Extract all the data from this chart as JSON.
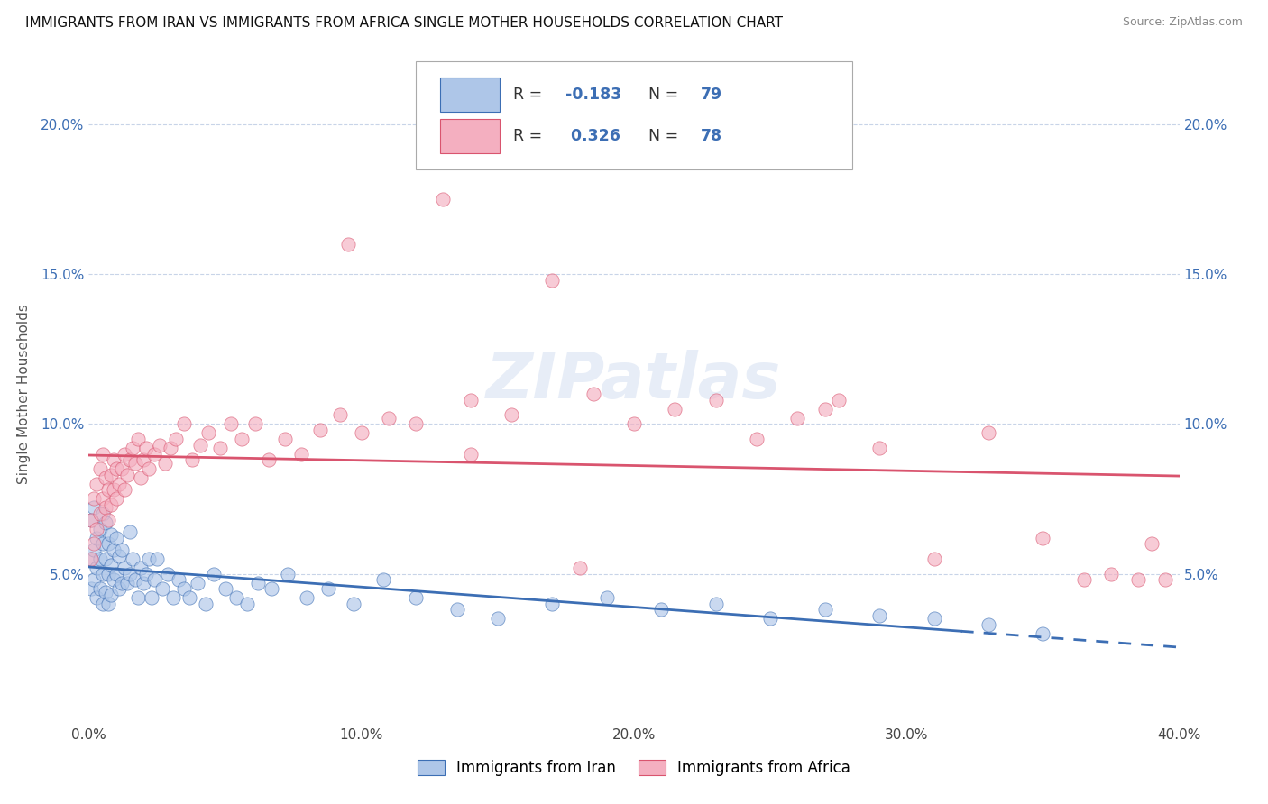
{
  "title": "IMMIGRANTS FROM IRAN VS IMMIGRANTS FROM AFRICA SINGLE MOTHER HOUSEHOLDS CORRELATION CHART",
  "source": "Source: ZipAtlas.com",
  "xlim": [
    0.0,
    0.4
  ],
  "ylim": [
    0.0,
    0.22
  ],
  "ylabel": "Single Mother Households",
  "legend_label_iran": "Immigrants from Iran",
  "legend_label_africa": "Immigrants from Africa",
  "legend_R_iran": "-0.183",
  "legend_N_iran": "79",
  "legend_R_africa": "0.326",
  "legend_N_africa": "78",
  "color_iran": "#aec6e8",
  "color_africa": "#f4afc0",
  "line_color_iran": "#3c6eb4",
  "line_color_africa": "#d9546e",
  "watermark": "ZIPatlas",
  "background_color": "#ffffff",
  "grid_color": "#c8d4e8",
  "iran_x": [
    0.001,
    0.001,
    0.001,
    0.002,
    0.002,
    0.002,
    0.003,
    0.003,
    0.003,
    0.004,
    0.004,
    0.004,
    0.005,
    0.005,
    0.005,
    0.005,
    0.006,
    0.006,
    0.006,
    0.007,
    0.007,
    0.007,
    0.008,
    0.008,
    0.008,
    0.009,
    0.009,
    0.01,
    0.01,
    0.011,
    0.011,
    0.012,
    0.012,
    0.013,
    0.014,
    0.015,
    0.015,
    0.016,
    0.017,
    0.018,
    0.019,
    0.02,
    0.021,
    0.022,
    0.023,
    0.024,
    0.025,
    0.027,
    0.029,
    0.031,
    0.033,
    0.035,
    0.037,
    0.04,
    0.043,
    0.046,
    0.05,
    0.054,
    0.058,
    0.062,
    0.067,
    0.073,
    0.08,
    0.088,
    0.097,
    0.108,
    0.12,
    0.135,
    0.15,
    0.17,
    0.19,
    0.21,
    0.23,
    0.25,
    0.27,
    0.29,
    0.31,
    0.33,
    0.35
  ],
  "iran_y": [
    0.068,
    0.055,
    0.045,
    0.072,
    0.058,
    0.048,
    0.062,
    0.052,
    0.042,
    0.065,
    0.055,
    0.045,
    0.07,
    0.06,
    0.05,
    0.04,
    0.067,
    0.055,
    0.044,
    0.06,
    0.05,
    0.04,
    0.063,
    0.053,
    0.043,
    0.058,
    0.048,
    0.062,
    0.05,
    0.056,
    0.045,
    0.058,
    0.047,
    0.052,
    0.047,
    0.064,
    0.05,
    0.055,
    0.048,
    0.042,
    0.052,
    0.047,
    0.05,
    0.055,
    0.042,
    0.048,
    0.055,
    0.045,
    0.05,
    0.042,
    0.048,
    0.045,
    0.042,
    0.047,
    0.04,
    0.05,
    0.045,
    0.042,
    0.04,
    0.047,
    0.045,
    0.05,
    0.042,
    0.045,
    0.04,
    0.048,
    0.042,
    0.038,
    0.035,
    0.04,
    0.042,
    0.038,
    0.04,
    0.035,
    0.038,
    0.036,
    0.035,
    0.033,
    0.03
  ],
  "africa_x": [
    0.001,
    0.001,
    0.002,
    0.002,
    0.003,
    0.003,
    0.004,
    0.004,
    0.005,
    0.005,
    0.006,
    0.006,
    0.007,
    0.007,
    0.008,
    0.008,
    0.009,
    0.009,
    0.01,
    0.01,
    0.011,
    0.012,
    0.013,
    0.013,
    0.014,
    0.015,
    0.016,
    0.017,
    0.018,
    0.019,
    0.02,
    0.021,
    0.022,
    0.024,
    0.026,
    0.028,
    0.03,
    0.032,
    0.035,
    0.038,
    0.041,
    0.044,
    0.048,
    0.052,
    0.056,
    0.061,
    0.066,
    0.072,
    0.078,
    0.085,
    0.092,
    0.1,
    0.11,
    0.12,
    0.13,
    0.14,
    0.155,
    0.17,
    0.185,
    0.2,
    0.215,
    0.23,
    0.245,
    0.26,
    0.275,
    0.29,
    0.31,
    0.33,
    0.35,
    0.365,
    0.375,
    0.385,
    0.39,
    0.395,
    0.27,
    0.18,
    0.14,
    0.095
  ],
  "africa_y": [
    0.068,
    0.055,
    0.075,
    0.06,
    0.08,
    0.065,
    0.085,
    0.07,
    0.09,
    0.075,
    0.072,
    0.082,
    0.068,
    0.078,
    0.073,
    0.083,
    0.078,
    0.088,
    0.075,
    0.085,
    0.08,
    0.085,
    0.09,
    0.078,
    0.083,
    0.088,
    0.092,
    0.087,
    0.095,
    0.082,
    0.088,
    0.092,
    0.085,
    0.09,
    0.093,
    0.087,
    0.092,
    0.095,
    0.1,
    0.088,
    0.093,
    0.097,
    0.092,
    0.1,
    0.095,
    0.1,
    0.088,
    0.095,
    0.09,
    0.098,
    0.103,
    0.097,
    0.102,
    0.1,
    0.175,
    0.108,
    0.103,
    0.148,
    0.11,
    0.1,
    0.105,
    0.108,
    0.095,
    0.102,
    0.108,
    0.092,
    0.055,
    0.097,
    0.062,
    0.048,
    0.05,
    0.048,
    0.06,
    0.048,
    0.105,
    0.052,
    0.09,
    0.16
  ]
}
